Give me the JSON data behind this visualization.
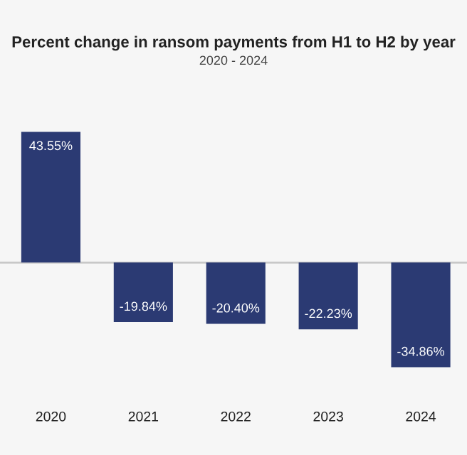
{
  "chart_data": {
    "type": "bar",
    "title": "Percent change in ransom payments from H1 to H2 by year",
    "subtitle": "2020 - 2024",
    "categories": [
      "2020",
      "2021",
      "2022",
      "2023",
      "2024"
    ],
    "values": [
      43.55,
      -19.84,
      -20.4,
      -22.23,
      -34.86
    ],
    "value_labels": [
      "43.55%",
      "-19.84%",
      "-20.40%",
      "-22.23%",
      "-34.86%"
    ],
    "color": "#2b3a73",
    "tick_labels": "x"
  }
}
